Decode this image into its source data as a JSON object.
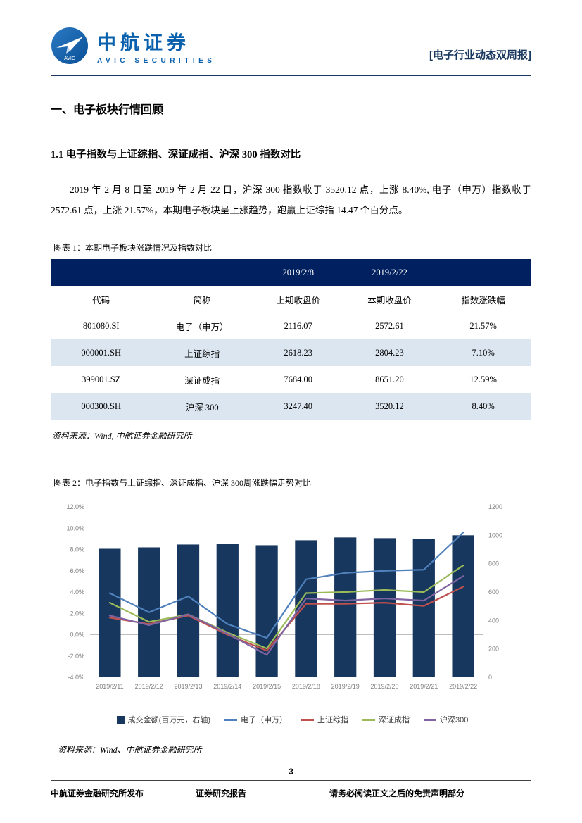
{
  "header": {
    "brand_cn": "中航证券",
    "brand_en": "AVIC SECURITIES",
    "logo_label": "AVIC",
    "report_tag": "[电子行业动态双周报]"
  },
  "section_title": "一、电子板块行情回顾",
  "subsection_title": "1.1 电子指数与上证综指、深证成指、沪深 300 指数对比",
  "paragraph": "2019 年 2 月 8 日至 2019 年 2 月 22 日，沪深 300 指数收于 3520.12 点，上涨 8.40%, 电子（申万）指数收于 2572.61 点，上涨 21.57%，本期电子板块呈上涨趋势，跑赢上证综指 14.47 个百分点。",
  "table1": {
    "caption": "图表 1：本期电子板块涨跌情况及指数对比",
    "date_headers": [
      "2019/2/8",
      "2019/2/22"
    ],
    "columns": [
      "代码",
      "简称",
      "上期收盘价",
      "本期收盘价",
      "指数涨跌幅"
    ],
    "rows": [
      [
        "801080.SI",
        "电子（申万）",
        "2116.07",
        "2572.61",
        "21.57%"
      ],
      [
        "000001.SH",
        "上证综指",
        "2618.23",
        "2804.23",
        "7.10%"
      ],
      [
        "399001.SZ",
        "深证成指",
        "7684.00",
        "8651.20",
        "12.59%"
      ],
      [
        "000300.SH",
        "沪深 300",
        "3247.40",
        "3520.12",
        "8.40%"
      ]
    ],
    "source": "资料来源：Wind, 中航证券金融研究所"
  },
  "figure2": {
    "caption": "图表 2：电子指数与上证综指、深证成指、沪深 300周涨跌幅走势对比",
    "source": "资料来源：Wind、中航证券金融研究所"
  },
  "chart_data": {
    "type": "combo-bar-line",
    "title": "电子指数与上证综指、深证成指、沪深300周涨跌幅走势对比",
    "categories": [
      "2019/2/11",
      "2019/2/12",
      "2019/2/13",
      "2019/2/14",
      "2019/2/15",
      "2019/2/18",
      "2019/2/19",
      "2019/2/20",
      "2019/2/21",
      "2019/2/22"
    ],
    "bar_series": {
      "name": "成交金额(百万元，右轴)",
      "axis": "right",
      "color": "#17375E",
      "values": [
        905,
        915,
        935,
        940,
        930,
        965,
        985,
        980,
        975,
        1000
      ]
    },
    "line_series": [
      {
        "name": "电子（申万）",
        "color": "#4F81BD",
        "values": [
          3.9,
          2.1,
          3.6,
          1.0,
          -0.3,
          5.2,
          5.8,
          6.0,
          6.1,
          9.6
        ]
      },
      {
        "name": "上证综指",
        "color": "#C0504D",
        "values": [
          1.6,
          1.0,
          1.8,
          0.0,
          -1.5,
          2.9,
          2.9,
          3.0,
          2.7,
          4.5
        ]
      },
      {
        "name": "深证成指",
        "color": "#9BBB59",
        "values": [
          3.0,
          1.2,
          1.9,
          0.2,
          -1.3,
          3.9,
          4.0,
          4.2,
          4.0,
          6.5
        ]
      },
      {
        "name": "沪深300",
        "color": "#8064A2",
        "values": [
          1.8,
          0.9,
          1.9,
          0.1,
          -1.9,
          3.4,
          3.2,
          3.4,
          3.2,
          5.5
        ]
      }
    ],
    "left_axis": {
      "min": -4,
      "max": 12,
      "ticks": [
        "-4.0%",
        "-2.0%",
        "0.0%",
        "2.0%",
        "4.0%",
        "6.0%",
        "8.0%",
        "10.0%",
        "12.0%"
      ]
    },
    "right_axis": {
      "min": 0,
      "max": 1200,
      "ticks": [
        "0",
        "200",
        "400",
        "600",
        "800",
        "1000",
        "1200"
      ]
    },
    "grid": "zero-line-only",
    "legend_position": "bottom"
  },
  "footer": {
    "page_number": "3",
    "publisher": "中航证券金融研究所发布",
    "report_type": "证券研究报告",
    "disclaimer": "请务必阅读正文之后的免责声明部分"
  },
  "colors": {
    "navy": "#17375E",
    "table_header": "#002060",
    "row_alt": "#DCE6F1",
    "brand_blue": "#0961AD"
  }
}
